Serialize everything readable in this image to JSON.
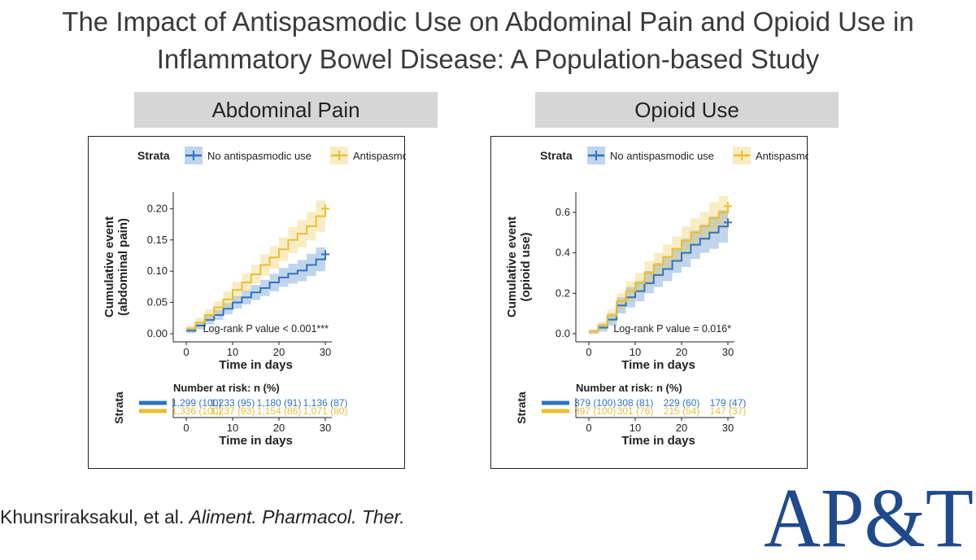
{
  "title": {
    "line1": "The Impact of Antispasmodic Use on Abdominal Pain and Opioid Use in",
    "line2": "Inflammatory Bowel Disease: A Population-based Study"
  },
  "citation": {
    "authors": "Khunsriraksakul, et al.",
    "journal": "Aliment. Pharmacol. Ther."
  },
  "logo": {
    "text": "AP&T",
    "color": "#1f4a8c"
  },
  "colors": {
    "no_antispasmodic": "#2e74c0",
    "antispasmodic": "#e7bf36",
    "header_bg": "#d6d6d6"
  },
  "chart_data": [
    {
      "panel_title": "Abdominal Pain",
      "type": "line",
      "legend_title": "Strata",
      "legend": [
        "No antispasmodic use",
        "Antispasmodic use"
      ],
      "xlabel": "Time in days",
      "ylabel_line1": "Cumulative event",
      "ylabel_line2": "(abdominal pain)",
      "xlim": [
        0,
        30
      ],
      "ylim": [
        0,
        0.22
      ],
      "xticks": [
        0,
        10,
        20,
        30
      ],
      "yticks": [
        0,
        0.05,
        0.1,
        0.15,
        0.2
      ],
      "ytick_labels": [
        "0.00",
        "0.05",
        "0.10",
        "0.15",
        "0.20"
      ],
      "pvalue_text": "Log-rank P value < 0.001***",
      "series": [
        {
          "name": "No antispasmodic use",
          "x": [
            0,
            2,
            4,
            6,
            8,
            10,
            12,
            14,
            16,
            18,
            20,
            22,
            24,
            26,
            28,
            30
          ],
          "y": [
            0.005,
            0.013,
            0.022,
            0.03,
            0.04,
            0.05,
            0.058,
            0.066,
            0.073,
            0.082,
            0.09,
            0.096,
            0.101,
            0.11,
            0.119,
            0.127
          ],
          "lower": [
            0.001,
            0.007,
            0.015,
            0.022,
            0.031,
            0.04,
            0.047,
            0.054,
            0.06,
            0.068,
            0.075,
            0.08,
            0.084,
            0.092,
            0.1,
            0.107
          ],
          "upper": [
            0.01,
            0.019,
            0.029,
            0.038,
            0.049,
            0.06,
            0.069,
            0.078,
            0.086,
            0.096,
            0.105,
            0.112,
            0.118,
            0.128,
            0.138,
            0.147
          ]
        },
        {
          "name": "Antispasmodic use",
          "x": [
            0,
            2,
            4,
            6,
            8,
            10,
            12,
            14,
            16,
            18,
            20,
            22,
            24,
            26,
            28,
            30
          ],
          "y": [
            0.008,
            0.018,
            0.03,
            0.042,
            0.055,
            0.07,
            0.082,
            0.095,
            0.11,
            0.122,
            0.135,
            0.15,
            0.16,
            0.172,
            0.188,
            0.2
          ],
          "lower": [
            0.003,
            0.011,
            0.021,
            0.032,
            0.043,
            0.057,
            0.068,
            0.08,
            0.093,
            0.104,
            0.116,
            0.129,
            0.138,
            0.149,
            0.163,
            0.174
          ],
          "upper": [
            0.013,
            0.025,
            0.039,
            0.052,
            0.067,
            0.083,
            0.096,
            0.11,
            0.127,
            0.14,
            0.154,
            0.171,
            0.182,
            0.195,
            0.213,
            0.226
          ]
        }
      ],
      "risk_table": {
        "title": "Number at risk: n (%)",
        "ylabel": "Strata",
        "rows": [
          [
            "1,299 (100)",
            "1,233 (95)",
            "1,180 (91)",
            "1,136 (87)"
          ],
          [
            "1,336 (100)",
            "1,237 (93)",
            "1,154 (86)",
            "1,071 (80)"
          ]
        ]
      }
    },
    {
      "panel_title": "Opioid Use",
      "type": "line",
      "legend_title": "Strata",
      "legend": [
        "No antispasmodic use",
        "Antispasmodic use"
      ],
      "xlabel": "Time in days",
      "ylabel_line1": "Cumulative event",
      "ylabel_line2": "(opioid use)",
      "xlim": [
        0,
        30
      ],
      "ylim": [
        0,
        0.68
      ],
      "xticks": [
        0,
        10,
        20,
        30
      ],
      "yticks": [
        0,
        0.2,
        0.4,
        0.6
      ],
      "ytick_labels": [
        "0.0",
        "0.2",
        "0.4",
        "0.6"
      ],
      "pvalue_text": "Log-rank P value = 0.016*",
      "series": [
        {
          "name": "No antispasmodic use",
          "x": [
            0,
            2,
            4,
            6,
            8,
            10,
            12,
            14,
            16,
            18,
            20,
            22,
            24,
            26,
            28,
            30
          ],
          "y": [
            0.01,
            0.03,
            0.07,
            0.14,
            0.18,
            0.21,
            0.25,
            0.29,
            0.32,
            0.36,
            0.4,
            0.44,
            0.47,
            0.5,
            0.53,
            0.55
          ],
          "lower": [
            0.0,
            0.01,
            0.04,
            0.1,
            0.13,
            0.16,
            0.2,
            0.23,
            0.26,
            0.3,
            0.33,
            0.37,
            0.4,
            0.42,
            0.45,
            0.46
          ],
          "upper": [
            0.02,
            0.05,
            0.1,
            0.18,
            0.23,
            0.26,
            0.31,
            0.35,
            0.38,
            0.42,
            0.47,
            0.51,
            0.54,
            0.58,
            0.61,
            0.64
          ]
        },
        {
          "name": "Antispasmodic use",
          "x": [
            0,
            2,
            4,
            6,
            8,
            10,
            12,
            14,
            16,
            18,
            20,
            22,
            24,
            26,
            28,
            30
          ],
          "y": [
            0.01,
            0.04,
            0.09,
            0.16,
            0.21,
            0.25,
            0.3,
            0.34,
            0.38,
            0.42,
            0.46,
            0.5,
            0.53,
            0.57,
            0.6,
            0.63
          ],
          "lower": [
            0.0,
            0.02,
            0.06,
            0.12,
            0.16,
            0.2,
            0.24,
            0.28,
            0.32,
            0.36,
            0.39,
            0.43,
            0.46,
            0.49,
            0.52,
            0.54
          ],
          "upper": [
            0.02,
            0.06,
            0.12,
            0.2,
            0.26,
            0.3,
            0.36,
            0.4,
            0.44,
            0.48,
            0.53,
            0.57,
            0.6,
            0.65,
            0.68,
            0.72
          ]
        }
      ],
      "risk_table": {
        "title": "Number at risk: n (%)",
        "ylabel": "Strata",
        "rows": [
          [
            "379 (100)",
            "308 (81)",
            "229 (60)",
            "179 (47)"
          ],
          [
            "397 (100)",
            "301 (76)",
            "215 (54)",
            "147 (37)"
          ]
        ]
      }
    }
  ]
}
